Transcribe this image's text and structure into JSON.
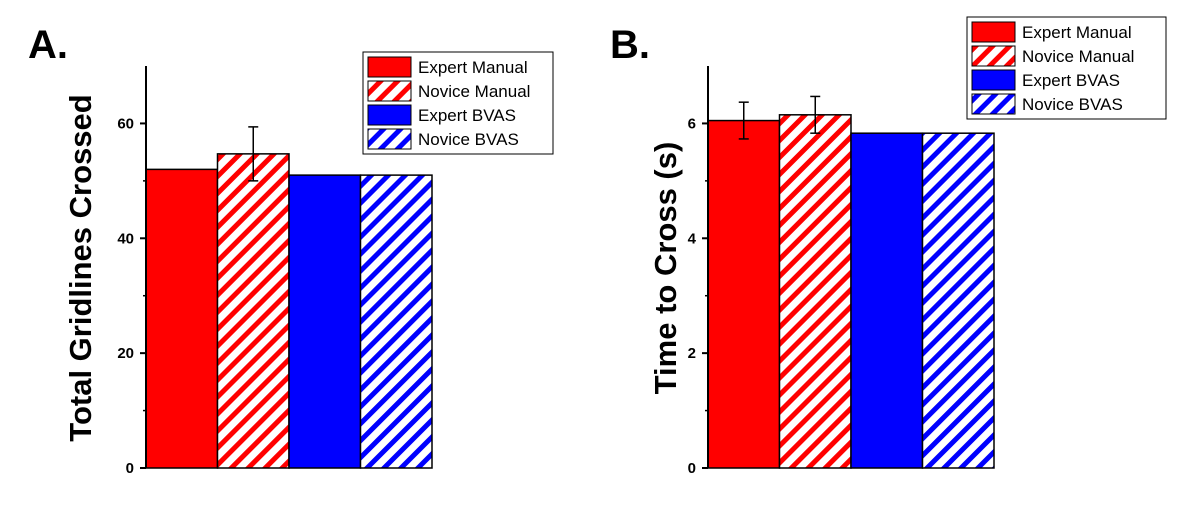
{
  "colors": {
    "expert_manual": "#ff0000",
    "novice_manual": "#ff0000",
    "expert_bvas": "#0000ff",
    "novice_bvas": "#0000ff",
    "background": "#ffffff"
  },
  "chart_data": [
    {
      "type": "bar",
      "panel_label": "A.",
      "title": "",
      "xlabel": "",
      "ylabel": "Total Gridlines Crossed",
      "ylim": [
        0,
        70
      ],
      "yticks": [
        0,
        20,
        40,
        60
      ],
      "legend_position": "top-right",
      "grid": false,
      "series": [
        {
          "name": "Expert Manual",
          "value": 52.0,
          "error": null,
          "pattern": "solid",
          "color": "#ff0000"
        },
        {
          "name": "Novice Manual",
          "value": 54.7,
          "error": 4.7,
          "pattern": "hatched",
          "color": "#ff0000"
        },
        {
          "name": "Expert BVAS",
          "value": 51.0,
          "error": null,
          "pattern": "solid",
          "color": "#0000ff"
        },
        {
          "name": "Novice BVAS",
          "value": 51.0,
          "error": null,
          "pattern": "hatched",
          "color": "#0000ff"
        }
      ]
    },
    {
      "type": "bar",
      "panel_label": "B.",
      "title": "",
      "xlabel": "",
      "ylabel": "Time to Cross (s)",
      "ylim": [
        0,
        7
      ],
      "yticks": [
        0,
        2,
        4,
        6
      ],
      "legend_position": "top-right",
      "grid": false,
      "series": [
        {
          "name": "Expert Manual",
          "value": 6.05,
          "error": 0.32,
          "pattern": "solid",
          "color": "#ff0000"
        },
        {
          "name": "Novice Manual",
          "value": 6.15,
          "error": 0.32,
          "pattern": "hatched",
          "color": "#ff0000"
        },
        {
          "name": "Expert BVAS",
          "value": 5.83,
          "error": null,
          "pattern": "solid",
          "color": "#0000ff"
        },
        {
          "name": "Novice BVAS",
          "value": 5.83,
          "error": null,
          "pattern": "hatched",
          "color": "#0000ff"
        }
      ]
    }
  ]
}
